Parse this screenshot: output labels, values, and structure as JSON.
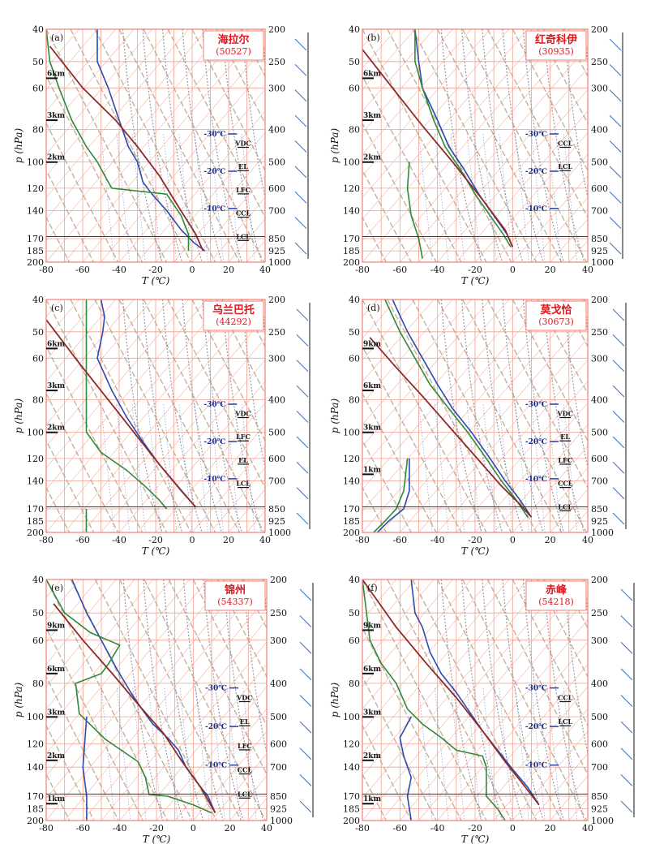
{
  "colors": {
    "grid": "#f4a08e",
    "frame": "#f08070",
    "temperature": "#2b4bb0",
    "dewpoint": "#2e8a3a",
    "parcel": "#8e2a2a",
    "cape_fill": "#e8443a",
    "adiabat": "#b9a58c",
    "moist_adiabat": "#9a9aa8",
    "wind": "#3a6fbf",
    "station": "#e0161c"
  },
  "axis_labels": {
    "y_title": "p (hPa)",
    "x_title": "T (℃)"
  },
  "chart_data": [
    {
      "type": "line",
      "panel": "(a)",
      "station": "海拉尔",
      "station_id": "(50527)",
      "xlim": [
        -80,
        40
      ],
      "x_ticks": [
        "-80",
        "-60",
        "-40",
        "-20",
        "0",
        "20",
        "40"
      ],
      "y_ticks_left": [
        "40",
        "50",
        "60",
        "80",
        "100",
        "120",
        "140",
        "170",
        "185",
        "200"
      ],
      "y_ticks_right": [
        "200",
        "250",
        "300",
        "400",
        "500",
        "600",
        "700",
        "850",
        "925",
        "1000"
      ],
      "height_markers": [
        "6km",
        "3km",
        "2km"
      ],
      "isotherm_labels": [
        "-30℃",
        "-20℃",
        "-10℃"
      ],
      "level_labels": [
        "VDC",
        "EL",
        "LFC",
        "CCL",
        "LCL"
      ],
      "series": [
        {
          "name": "temperature",
          "x": [
            -52,
            -52,
            -46,
            -40,
            -35,
            -30,
            -27,
            -22,
            -14,
            -6,
            1,
            7
          ],
          "y": [
            40,
            50,
            60,
            75,
            90,
            100,
            115,
            125,
            140,
            160,
            175,
            185
          ]
        },
        {
          "name": "dewpoint",
          "x": [
            -80,
            -78,
            -73,
            -66,
            -58,
            -52,
            -46,
            -44,
            -14,
            -6,
            -2,
            -2
          ],
          "y": [
            40,
            50,
            60,
            75,
            90,
            100,
            115,
            120,
            125,
            145,
            165,
            185
          ]
        },
        {
          "name": "parcel",
          "x": [
            -78,
            -60,
            -42,
            -30,
            -18,
            -8,
            2,
            6
          ],
          "y": [
            45,
            60,
            75,
            90,
            110,
            135,
            165,
            185
          ]
        }
      ]
    },
    {
      "type": "line",
      "panel": "(b)",
      "station": "红奇科伊",
      "station_id": "(30935)",
      "xlim": [
        -80,
        40
      ],
      "x_ticks": [
        "-80",
        "-60",
        "-40",
        "-20",
        "0",
        "20",
        "40"
      ],
      "y_ticks_left": [
        "40",
        "50",
        "60",
        "80",
        "100",
        "120",
        "140",
        "170",
        "185",
        "200"
      ],
      "y_ticks_right": [
        "200",
        "250",
        "300",
        "400",
        "500",
        "600",
        "700",
        "850",
        "925",
        "1000"
      ],
      "height_markers": [
        "6km",
        "3km",
        "2km"
      ],
      "isotherm_labels": [
        "-30℃",
        "-20℃",
        "-10℃"
      ],
      "level_labels": [
        "CCL",
        "LCL"
      ],
      "series": [
        {
          "name": "temperature",
          "x": [
            -52,
            -50,
            -48,
            -40,
            -34,
            -26,
            -18,
            -10,
            -3,
            0
          ],
          "y": [
            40,
            50,
            60,
            75,
            90,
            105,
            125,
            145,
            165,
            180
          ]
        },
        {
          "name": "dewpoint",
          "x": [
            -52,
            -52,
            -48,
            -42,
            -36,
            -28,
            -20,
            -12,
            -5,
            -1
          ],
          "y": [
            40,
            50,
            60,
            75,
            90,
            105,
            125,
            145,
            165,
            180
          ]
        },
        {
          "name": "dewpoint-lower",
          "x": [
            -55,
            -56,
            -54,
            -50,
            -48
          ],
          "y": [
            100,
            120,
            145,
            170,
            195
          ]
        },
        {
          "name": "parcel",
          "x": [
            -80,
            -64,
            -48,
            -32,
            -16,
            -4,
            0
          ],
          "y": [
            46,
            60,
            78,
            100,
            130,
            160,
            180
          ]
        }
      ]
    },
    {
      "type": "line",
      "panel": "(c)",
      "station": "乌兰巴托",
      "station_id": "(44292)",
      "xlim": [
        -80,
        40
      ],
      "x_ticks": [
        "-80",
        "-60",
        "-40",
        "-20",
        "0",
        "20",
        "40"
      ],
      "y_ticks_left": [
        "40",
        "50",
        "60",
        "80",
        "100",
        "120",
        "140",
        "170",
        "185",
        "200"
      ],
      "y_ticks_right": [
        "200",
        "250",
        "300",
        "400",
        "500",
        "600",
        "700",
        "850",
        "925",
        "1000"
      ],
      "height_markers": [
        "6km",
        "3km",
        "2km"
      ],
      "isotherm_labels": [
        "-30℃",
        "-20℃",
        "-10℃"
      ],
      "level_labels": [
        "VDC",
        "LFC",
        "EL",
        "LCL"
      ],
      "series": [
        {
          "name": "temperature",
          "x": [
            -50,
            -48,
            -49,
            -52,
            -44,
            -36,
            -28,
            -18,
            -8,
            2
          ],
          "y": [
            40,
            45,
            50,
            60,
            75,
            90,
            105,
            125,
            145,
            168
          ]
        },
        {
          "name": "dewpoint",
          "x": [
            -58,
            -58,
            -58,
            -58,
            -50,
            -36,
            -26,
            -18,
            -14
          ],
          "y": [
            40,
            60,
            80,
            100,
            115,
            130,
            145,
            160,
            170
          ]
        },
        {
          "name": "dewpoint-lower",
          "x": [
            -58,
            -58,
            -58
          ],
          "y": [
            170,
            185,
            200
          ]
        },
        {
          "name": "parcel",
          "x": [
            -80,
            -62,
            -46,
            -32,
            -18,
            -6,
            2
          ],
          "y": [
            46,
            62,
            80,
            100,
            125,
            150,
            168
          ]
        }
      ]
    },
    {
      "type": "line",
      "panel": "(d)",
      "station": "莫戈恰",
      "station_id": "(30673)",
      "xlim": [
        -80,
        40
      ],
      "x_ticks": [
        "-80",
        "-60",
        "-40",
        "-20",
        "0",
        "20",
        "40"
      ],
      "y_ticks_left": [
        "40",
        "50",
        "60",
        "80",
        "100",
        "120",
        "140",
        "170",
        "185",
        "200"
      ],
      "y_ticks_right": [
        "200",
        "250",
        "300",
        "400",
        "500",
        "600",
        "700",
        "850",
        "925",
        "1000"
      ],
      "height_markers": [
        "9km",
        "6km",
        "3km",
        "1km"
      ],
      "isotherm_labels": [
        "-30℃",
        "-20℃",
        "-10℃"
      ],
      "level_labels": [
        "VDC",
        "EL",
        "LFC",
        "CCL",
        "LCL"
      ],
      "series": [
        {
          "name": "temperature",
          "x": [
            -64,
            -56,
            -48,
            -40,
            -32,
            -22,
            -12,
            -4,
            4,
            10
          ],
          "y": [
            40,
            50,
            60,
            72,
            85,
            100,
            120,
            140,
            160,
            180
          ]
        },
        {
          "name": "dewpoint",
          "x": [
            -68,
            -60,
            -52,
            -44,
            -34,
            -24,
            -14,
            -6,
            2,
            8
          ],
          "y": [
            40,
            50,
            60,
            72,
            85,
            100,
            120,
            140,
            160,
            180
          ]
        },
        {
          "name": "dewpoint-lower",
          "x": [
            -56,
            -58,
            -62,
            -68,
            -74
          ],
          "y": [
            120,
            150,
            170,
            185,
            200
          ]
        },
        {
          "name": "temperature-lower",
          "x": [
            -55,
            -55,
            -58,
            -66,
            -72
          ],
          "y": [
            120,
            150,
            170,
            185,
            200
          ]
        },
        {
          "name": "parcel",
          "x": [
            -76,
            -62,
            -48,
            -34,
            -20,
            -6,
            4,
            10
          ],
          "y": [
            52,
            64,
            78,
            96,
            118,
            145,
            165,
            180
          ]
        }
      ]
    },
    {
      "type": "line",
      "panel": "(e)",
      "station": "锦州",
      "station_id": "(54337)",
      "xlim": [
        -80,
        40
      ],
      "x_ticks": [
        "-80",
        "-60",
        "-40",
        "-20",
        "0",
        "20",
        "40"
      ],
      "y_ticks_left": [
        "40",
        "50",
        "60",
        "80",
        "100",
        "120",
        "140",
        "170",
        "185",
        "200"
      ],
      "y_ticks_right": [
        "200",
        "250",
        "300",
        "400",
        "500",
        "600",
        "700",
        "850",
        "925",
        "1000"
      ],
      "height_markers": [
        "9km",
        "6km",
        "3km",
        "2km",
        "1km"
      ],
      "isotherm_labels": [
        "-30℃",
        "-20℃",
        "-10℃"
      ],
      "level_labels": [
        "VDC",
        "EL",
        "LFC",
        "CCL",
        "LCL"
      ],
      "series": [
        {
          "name": "temperature",
          "x": [
            -66,
            -58,
            -50,
            -42,
            -34,
            -28,
            -22,
            -14,
            -8,
            -4,
            2,
            8,
            12
          ],
          "y": [
            40,
            50,
            60,
            72,
            85,
            95,
            105,
            115,
            125,
            140,
            155,
            170,
            190
          ]
        },
        {
          "name": "dewpoint",
          "x": [
            -80,
            -70,
            -56,
            -40,
            -46,
            -50,
            -64,
            -62,
            -48,
            -30,
            -26,
            -24,
            -14,
            0,
            10
          ],
          "y": [
            40,
            50,
            57,
            62,
            70,
            75,
            80,
            98,
            116,
            135,
            150,
            168,
            170,
            180,
            190
          ]
        },
        {
          "name": "temperature-lower",
          "x": [
            -58,
            -60,
            -58,
            -58
          ],
          "y": [
            100,
            140,
            170,
            205
          ]
        },
        {
          "name": "parcel",
          "x": [
            -76,
            -60,
            -44,
            -30,
            -16,
            -6,
            4,
            12
          ],
          "y": [
            47,
            60,
            75,
            92,
            112,
            135,
            160,
            190
          ]
        }
      ]
    },
    {
      "type": "line",
      "panel": "(f)",
      "station": "赤峰",
      "station_id": "(54218)",
      "xlim": [
        -80,
        40
      ],
      "x_ticks": [
        "-80",
        "-60",
        "-40",
        "-20",
        "0",
        "20",
        "40"
      ],
      "y_ticks_left": [
        "40",
        "50",
        "60",
        "80",
        "100",
        "120",
        "140",
        "170",
        "185",
        "200"
      ],
      "y_ticks_right": [
        "200",
        "250",
        "300",
        "400",
        "500",
        "600",
        "700",
        "850",
        "925",
        "1000"
      ],
      "height_markers": [
        "9km",
        "6km",
        "3km",
        "2km",
        "1km"
      ],
      "isotherm_labels": [
        "-30℃",
        "-20℃",
        "-10℃"
      ],
      "level_labels": [
        "CCL",
        "LCL"
      ],
      "series": [
        {
          "name": "temperature",
          "x": [
            -54,
            -52,
            -48,
            -44,
            -38,
            -30,
            -24,
            -16,
            -8,
            0,
            8,
            14
          ],
          "y": [
            40,
            50,
            55,
            65,
            75,
            85,
            95,
            110,
            125,
            142,
            160,
            180
          ]
        },
        {
          "name": "dewpoint",
          "x": [
            -80,
            -76,
            -70,
            -62,
            -56,
            -48,
            -38,
            -30,
            -16,
            -14,
            -14,
            -8,
            -4
          ],
          "y": [
            40,
            60,
            70,
            80,
            95,
            105,
            115,
            125,
            130,
            140,
            170,
            185,
            200
          ]
        },
        {
          "name": "temperature-lower",
          "x": [
            -54,
            -60,
            -58,
            -54,
            -56,
            -54
          ],
          "y": [
            100,
            115,
            130,
            150,
            170,
            200
          ]
        },
        {
          "name": "parcel",
          "x": [
            -80,
            -62,
            -46,
            -30,
            -16,
            -4,
            6,
            14
          ],
          "y": [
            40,
            55,
            70,
            88,
            110,
            135,
            158,
            180
          ]
        }
      ]
    }
  ]
}
